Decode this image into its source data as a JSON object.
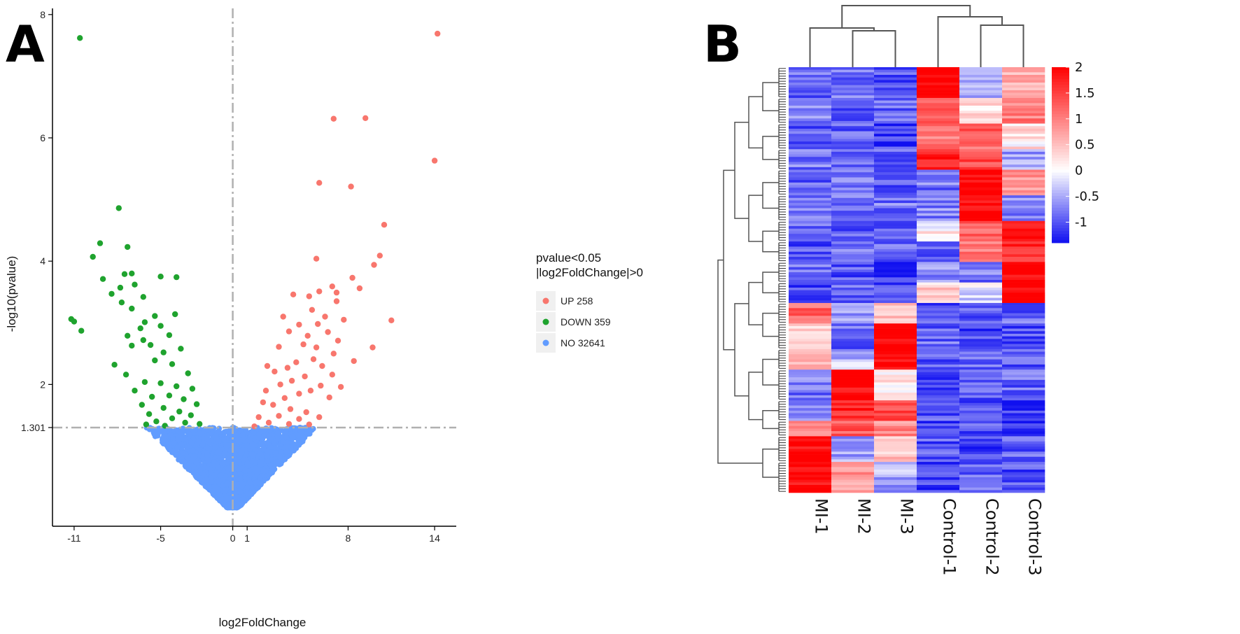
{
  "figure": {
    "panel_a_letter": "A",
    "panel_b_letter": "B"
  },
  "colors": {
    "up": "#F8766D",
    "down": "#1FA32E",
    "no": "#619CFF",
    "threshold": "#b0b0b0",
    "heat_low": "#1010f0",
    "heat_mid": "#ffffff",
    "heat_high": "#ff0000",
    "dendro": "#555555"
  },
  "chart_data": [
    {
      "type": "scatter",
      "title": "",
      "xlabel": "log2FoldChange",
      "ylabel": "-log10(pvalue)",
      "xlim": [
        -12.5,
        15.5
      ],
      "ylim": [
        -0.3,
        8.1
      ],
      "x_ticks": [
        -11,
        -5,
        0,
        1,
        8,
        14
      ],
      "x_tick_labels": [
        "-11",
        "-5",
        "0",
        "1",
        "8",
        "14"
      ],
      "y_ticks": [
        1.301,
        2,
        4,
        6,
        8
      ],
      "y_tick_labels": [
        "1.301",
        "2",
        "4",
        "6",
        "8"
      ],
      "thresholds": {
        "vline_x": 0,
        "hline_y": 1.301
      },
      "legend": {
        "title_line1": "pvalue<0.05",
        "title_line2": "|log2FoldChange|>0",
        "position": "right",
        "entries": [
          {
            "key": "up",
            "label": "UP 258"
          },
          {
            "key": "down",
            "label": "DOWN 359"
          },
          {
            "key": "no",
            "label": "NO 32641"
          }
        ]
      },
      "series": [
        {
          "name": "UP",
          "count": 258,
          "points": [
            [
              14.2,
              7.69
            ],
            [
              14.0,
              5.63
            ],
            [
              7.0,
              6.31
            ],
            [
              9.2,
              6.32
            ],
            [
              6.0,
              5.27
            ],
            [
              8.2,
              5.21
            ],
            [
              10.5,
              4.59
            ],
            [
              5.8,
              4.04
            ],
            [
              10.2,
              4.09
            ],
            [
              9.8,
              3.94
            ],
            [
              8.3,
              3.73
            ],
            [
              6.9,
              3.59
            ],
            [
              6.0,
              3.51
            ],
            [
              7.2,
              3.49
            ],
            [
              4.2,
              3.46
            ],
            [
              5.3,
              3.43
            ],
            [
              8.8,
              3.56
            ],
            [
              11.0,
              3.04
            ],
            [
              9.7,
              2.6
            ],
            [
              5.5,
              3.21
            ],
            [
              7.2,
              3.35
            ],
            [
              6.4,
              3.1
            ],
            [
              4.6,
              2.97
            ],
            [
              3.5,
              3.1
            ],
            [
              5.9,
              2.98
            ],
            [
              7.7,
              3.05
            ],
            [
              3.9,
              2.86
            ],
            [
              5.2,
              2.79
            ],
            [
              6.6,
              2.85
            ],
            [
              7.3,
              2.71
            ],
            [
              4.9,
              2.65
            ],
            [
              5.8,
              2.6
            ],
            [
              3.2,
              2.61
            ],
            [
              2.4,
              2.3
            ],
            [
              7.0,
              2.5
            ],
            [
              8.4,
              2.38
            ],
            [
              4.4,
              2.36
            ],
            [
              5.6,
              2.41
            ],
            [
              6.2,
              2.3
            ],
            [
              3.8,
              2.27
            ],
            [
              2.9,
              2.21
            ],
            [
              6.9,
              2.16
            ],
            [
              5.0,
              2.13
            ],
            [
              4.1,
              2.06
            ],
            [
              3.3,
              2.0
            ],
            [
              2.3,
              1.9
            ],
            [
              6.1,
              1.98
            ],
            [
              7.5,
              1.96
            ],
            [
              5.4,
              1.9
            ],
            [
              4.6,
              1.85
            ],
            [
              2.1,
              1.71
            ],
            [
              3.6,
              1.78
            ],
            [
              6.7,
              1.79
            ],
            [
              2.8,
              1.67
            ],
            [
              4.0,
              1.6
            ],
            [
              5.1,
              1.55
            ],
            [
              1.8,
              1.47
            ],
            [
              3.2,
              1.49
            ],
            [
              4.6,
              1.44
            ],
            [
              6.0,
              1.47
            ],
            [
              2.5,
              1.38
            ],
            [
              3.9,
              1.36
            ],
            [
              5.3,
              1.35
            ],
            [
              1.5,
              1.32
            ]
          ]
        },
        {
          "name": "DOWN",
          "count": 359,
          "points": [
            [
              -10.6,
              7.62
            ],
            [
              -7.9,
              4.86
            ],
            [
              -9.2,
              4.29
            ],
            [
              -7.3,
              4.23
            ],
            [
              -9.7,
              4.07
            ],
            [
              -7.0,
              3.8
            ],
            [
              -7.5,
              3.79
            ],
            [
              -9.0,
              3.71
            ],
            [
              -5.0,
              3.75
            ],
            [
              -3.9,
              3.74
            ],
            [
              -7.8,
              3.57
            ],
            [
              -6.8,
              3.62
            ],
            [
              -8.4,
              3.47
            ],
            [
              -6.2,
              3.42
            ],
            [
              -7.7,
              3.33
            ],
            [
              -7.0,
              3.23
            ],
            [
              -11.2,
              3.06
            ],
            [
              -11.0,
              3.02
            ],
            [
              -10.5,
              2.87
            ],
            [
              -4.0,
              3.14
            ],
            [
              -5.4,
              3.11
            ],
            [
              -6.1,
              3.01
            ],
            [
              -6.4,
              2.91
            ],
            [
              -7.3,
              2.79
            ],
            [
              -5.0,
              2.95
            ],
            [
              -4.4,
              2.8
            ],
            [
              -6.2,
              2.72
            ],
            [
              -5.7,
              2.64
            ],
            [
              -7.0,
              2.63
            ],
            [
              -4.8,
              2.52
            ],
            [
              -3.6,
              2.58
            ],
            [
              -8.2,
              2.32
            ],
            [
              -5.4,
              2.39
            ],
            [
              -4.2,
              2.33
            ],
            [
              -7.4,
              2.16
            ],
            [
              -3.1,
              2.18
            ],
            [
              -6.1,
              2.04
            ],
            [
              -5.0,
              2.02
            ],
            [
              -3.9,
              1.97
            ],
            [
              -2.8,
              1.93
            ],
            [
              -6.8,
              1.9
            ],
            [
              -4.4,
              1.82
            ],
            [
              -5.6,
              1.8
            ],
            [
              -3.4,
              1.76
            ],
            [
              -2.5,
              1.68
            ],
            [
              -6.3,
              1.67
            ],
            [
              -4.8,
              1.62
            ],
            [
              -3.7,
              1.56
            ],
            [
              -5.8,
              1.52
            ],
            [
              -2.9,
              1.5
            ],
            [
              -4.2,
              1.45
            ],
            [
              -5.3,
              1.4
            ],
            [
              -3.3,
              1.38
            ],
            [
              -2.3,
              1.36
            ],
            [
              -4.7,
              1.33
            ],
            [
              -6.0,
              1.35
            ]
          ]
        },
        {
          "name": "NO",
          "count": 32641,
          "points_note": "dense non-significant cloud below 1.301, generated from a V-shaped envelope"
        }
      ]
    },
    {
      "type": "heatmap",
      "title": "",
      "columns": [
        "MI-1",
        "MI-2",
        "MI-3",
        "Control-1",
        "Control-2",
        "Control-3"
      ],
      "color_scale": {
        "min": -1.4,
        "max": 2.0,
        "ticks": [
          2,
          1.5,
          1,
          0.5,
          0,
          -0.5,
          -1
        ],
        "tick_labels": [
          "2",
          "1.5",
          "1",
          "0.5",
          "0",
          "-0.5",
          "-1"
        ]
      },
      "row_blocks": [
        {
          "rows": 12,
          "values": [
            -0.9,
            -0.8,
            -1.0,
            2.0,
            -0.4,
            0.6
          ]
        },
        {
          "rows": 10,
          "values": [
            -0.7,
            -1.1,
            -0.9,
            1.4,
            0.3,
            1.0
          ]
        },
        {
          "rows": 10,
          "values": [
            -1.0,
            -0.9,
            -1.1,
            1.0,
            1.2,
            0.2
          ]
        },
        {
          "rows": 8,
          "values": [
            -0.8,
            -1.0,
            -0.9,
            1.8,
            1.4,
            -0.6
          ]
        },
        {
          "rows": 10,
          "values": [
            -0.9,
            -0.8,
            -1.0,
            -0.8,
            2.0,
            0.8
          ]
        },
        {
          "rows": 10,
          "values": [
            -0.7,
            -0.9,
            -0.8,
            -0.7,
            2.0,
            -0.7
          ]
        },
        {
          "rows": 8,
          "values": [
            -0.9,
            -0.9,
            -1.0,
            0.1,
            1.3,
            1.9
          ]
        },
        {
          "rows": 8,
          "values": [
            -1.0,
            -0.8,
            -0.9,
            -0.9,
            1.0,
            1.6
          ]
        },
        {
          "rows": 8,
          "values": [
            -0.9,
            -1.0,
            -1.1,
            -0.6,
            -0.8,
            2.0
          ]
        },
        {
          "rows": 8,
          "values": [
            -1.1,
            -0.9,
            -1.0,
            0.4,
            -0.2,
            2.0
          ]
        },
        {
          "rows": 8,
          "values": [
            1.2,
            -0.6,
            0.6,
            -1.0,
            -1.0,
            -0.9
          ]
        },
        {
          "rows": 10,
          "values": [
            0.3,
            -0.9,
            2.0,
            -0.9,
            -1.1,
            -1.0
          ]
        },
        {
          "rows": 8,
          "values": [
            0.6,
            -0.4,
            1.9,
            -1.0,
            -0.9,
            -1.0
          ]
        },
        {
          "rows": 12,
          "values": [
            -0.8,
            2.0,
            0.2,
            -1.0,
            -1.0,
            -0.9
          ]
        },
        {
          "rows": 8,
          "values": [
            -0.6,
            1.7,
            1.4,
            -1.0,
            -1.1,
            -1.2
          ]
        },
        {
          "rows": 6,
          "values": [
            0.9,
            1.3,
            0.9,
            -1.1,
            -1.0,
            -1.2
          ]
        },
        {
          "rows": 10,
          "values": [
            2.0,
            -0.6,
            0.4,
            -1.0,
            -1.1,
            -0.9
          ]
        },
        {
          "rows": 12,
          "values": [
            2.0,
            0.8,
            -0.5,
            -1.1,
            -0.9,
            -1.0
          ]
        }
      ]
    }
  ]
}
